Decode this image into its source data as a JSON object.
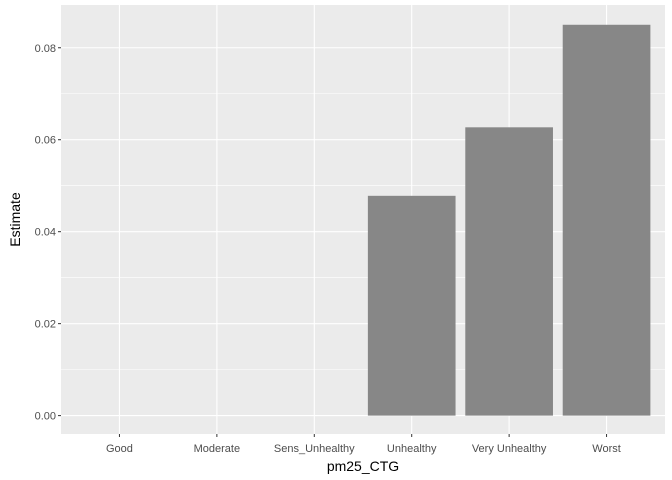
{
  "chart_data": {
    "type": "bar",
    "title": "",
    "xlabel": "pm25_CTG",
    "ylabel": "Estimate",
    "categories": [
      "Good",
      "Moderate",
      "Sens_Unhealthy",
      "Unhealthy",
      "Very Unhealthy",
      "Worst"
    ],
    "values": [
      0,
      0,
      0,
      0.0478,
      0.0627,
      0.085
    ],
    "ylim": [
      -0.004,
      0.0893
    ],
    "yticks": [
      0,
      0.02,
      0.04,
      0.06,
      0.08
    ],
    "ytick_labels": [
      "0.00",
      "0.02",
      "0.04",
      "0.06",
      "0.08"
    ],
    "grid": true,
    "legend": "none",
    "colors": {
      "panel_bg": "#ebebeb",
      "grid_major": "#ffffff",
      "bar_fill": "#878787",
      "tick_text": "#4d4d4d",
      "tick_mark": "#333333"
    }
  }
}
